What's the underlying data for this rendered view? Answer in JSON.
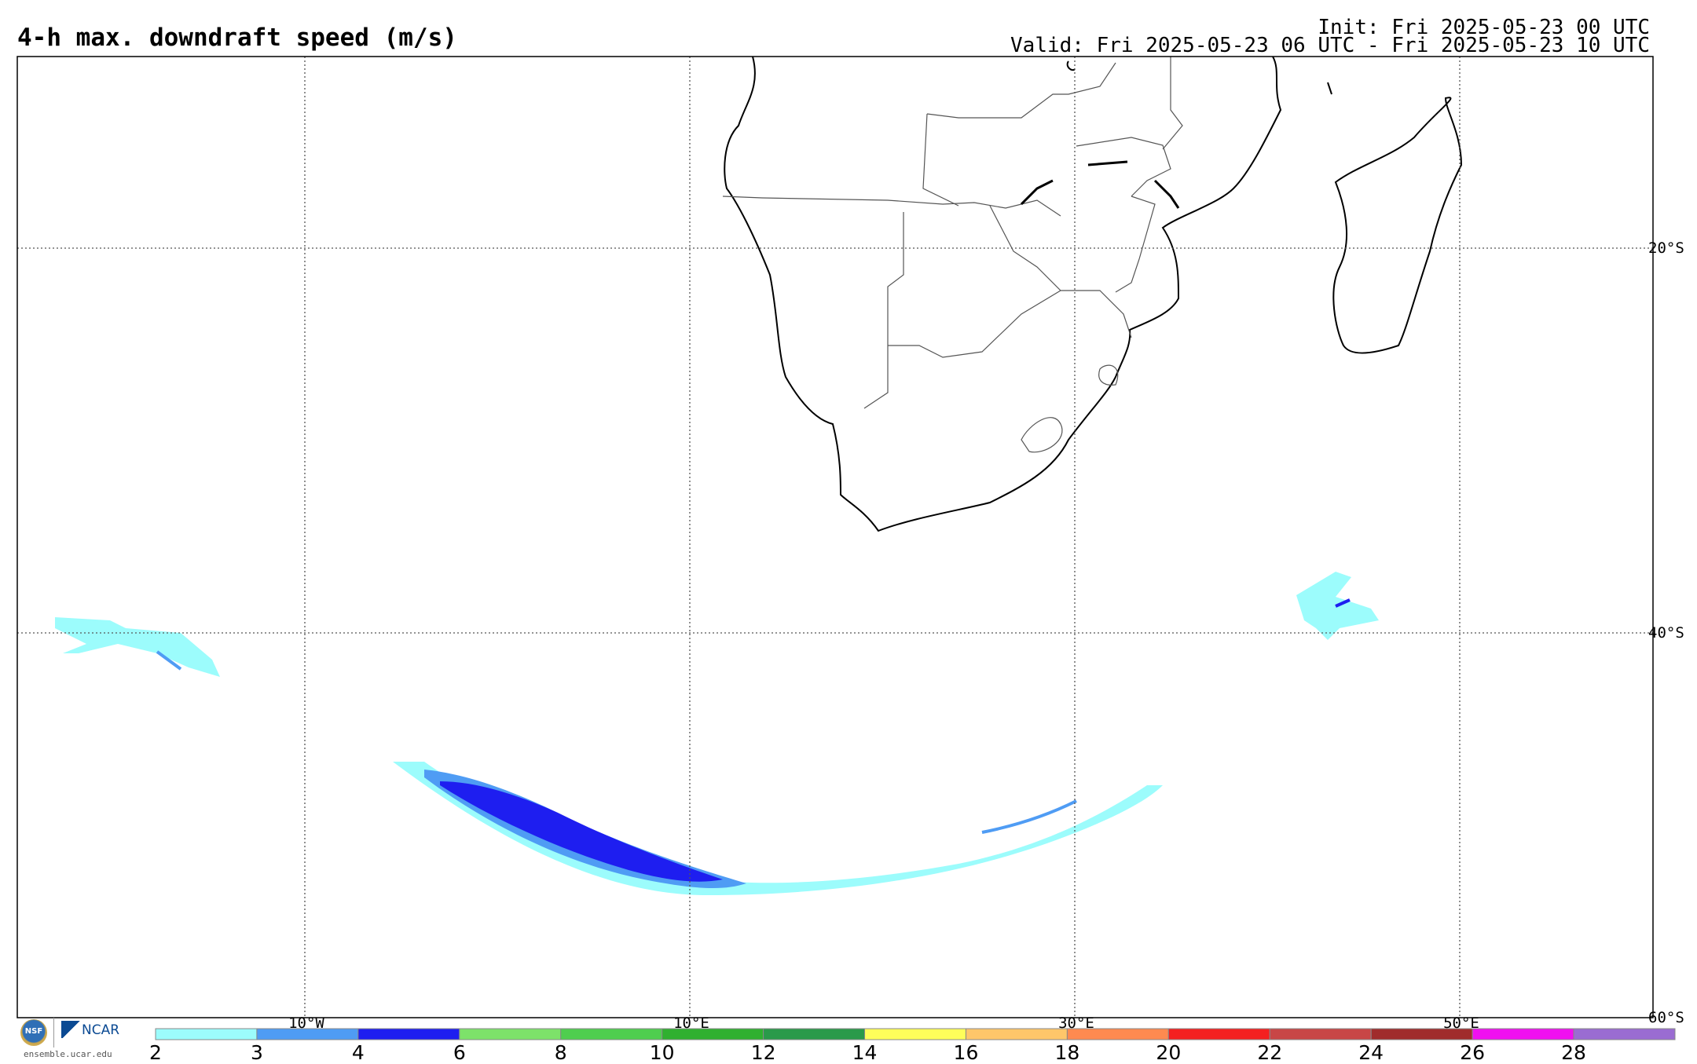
{
  "header": {
    "title": "4-h max. downdraft speed (m/s)",
    "init": "Init: Fri 2025-05-23 00 UTC",
    "valid": "Valid: Fri 2025-05-23 06 UTC - Fri 2025-05-23 10 UTC"
  },
  "map": {
    "lon_labels": [
      "10°W",
      "10°E",
      "30°E",
      "50°E"
    ],
    "lat_labels": [
      "20°S",
      "40°S",
      "60°S"
    ]
  },
  "colorbar": {
    "labels": [
      "2",
      "3",
      "4",
      "6",
      "8",
      "10",
      "12",
      "14",
      "16",
      "18",
      "20",
      "22",
      "24",
      "26",
      "28"
    ],
    "colors": [
      "#9cfcfc",
      "#4f9cf4",
      "#1e1ef0",
      "#7de26a",
      "#4fce4f",
      "#30b030",
      "#2a9a4a",
      "#fefe5a",
      "#fec66a",
      "#fe8a50",
      "#f42020",
      "#c84646",
      "#a02c2c",
      "#f010f0",
      "#9a6cd2"
    ]
  },
  "footer": {
    "site": "ensemble.ucar.edu",
    "nsf": "NSF",
    "ncar": "NCAR"
  }
}
